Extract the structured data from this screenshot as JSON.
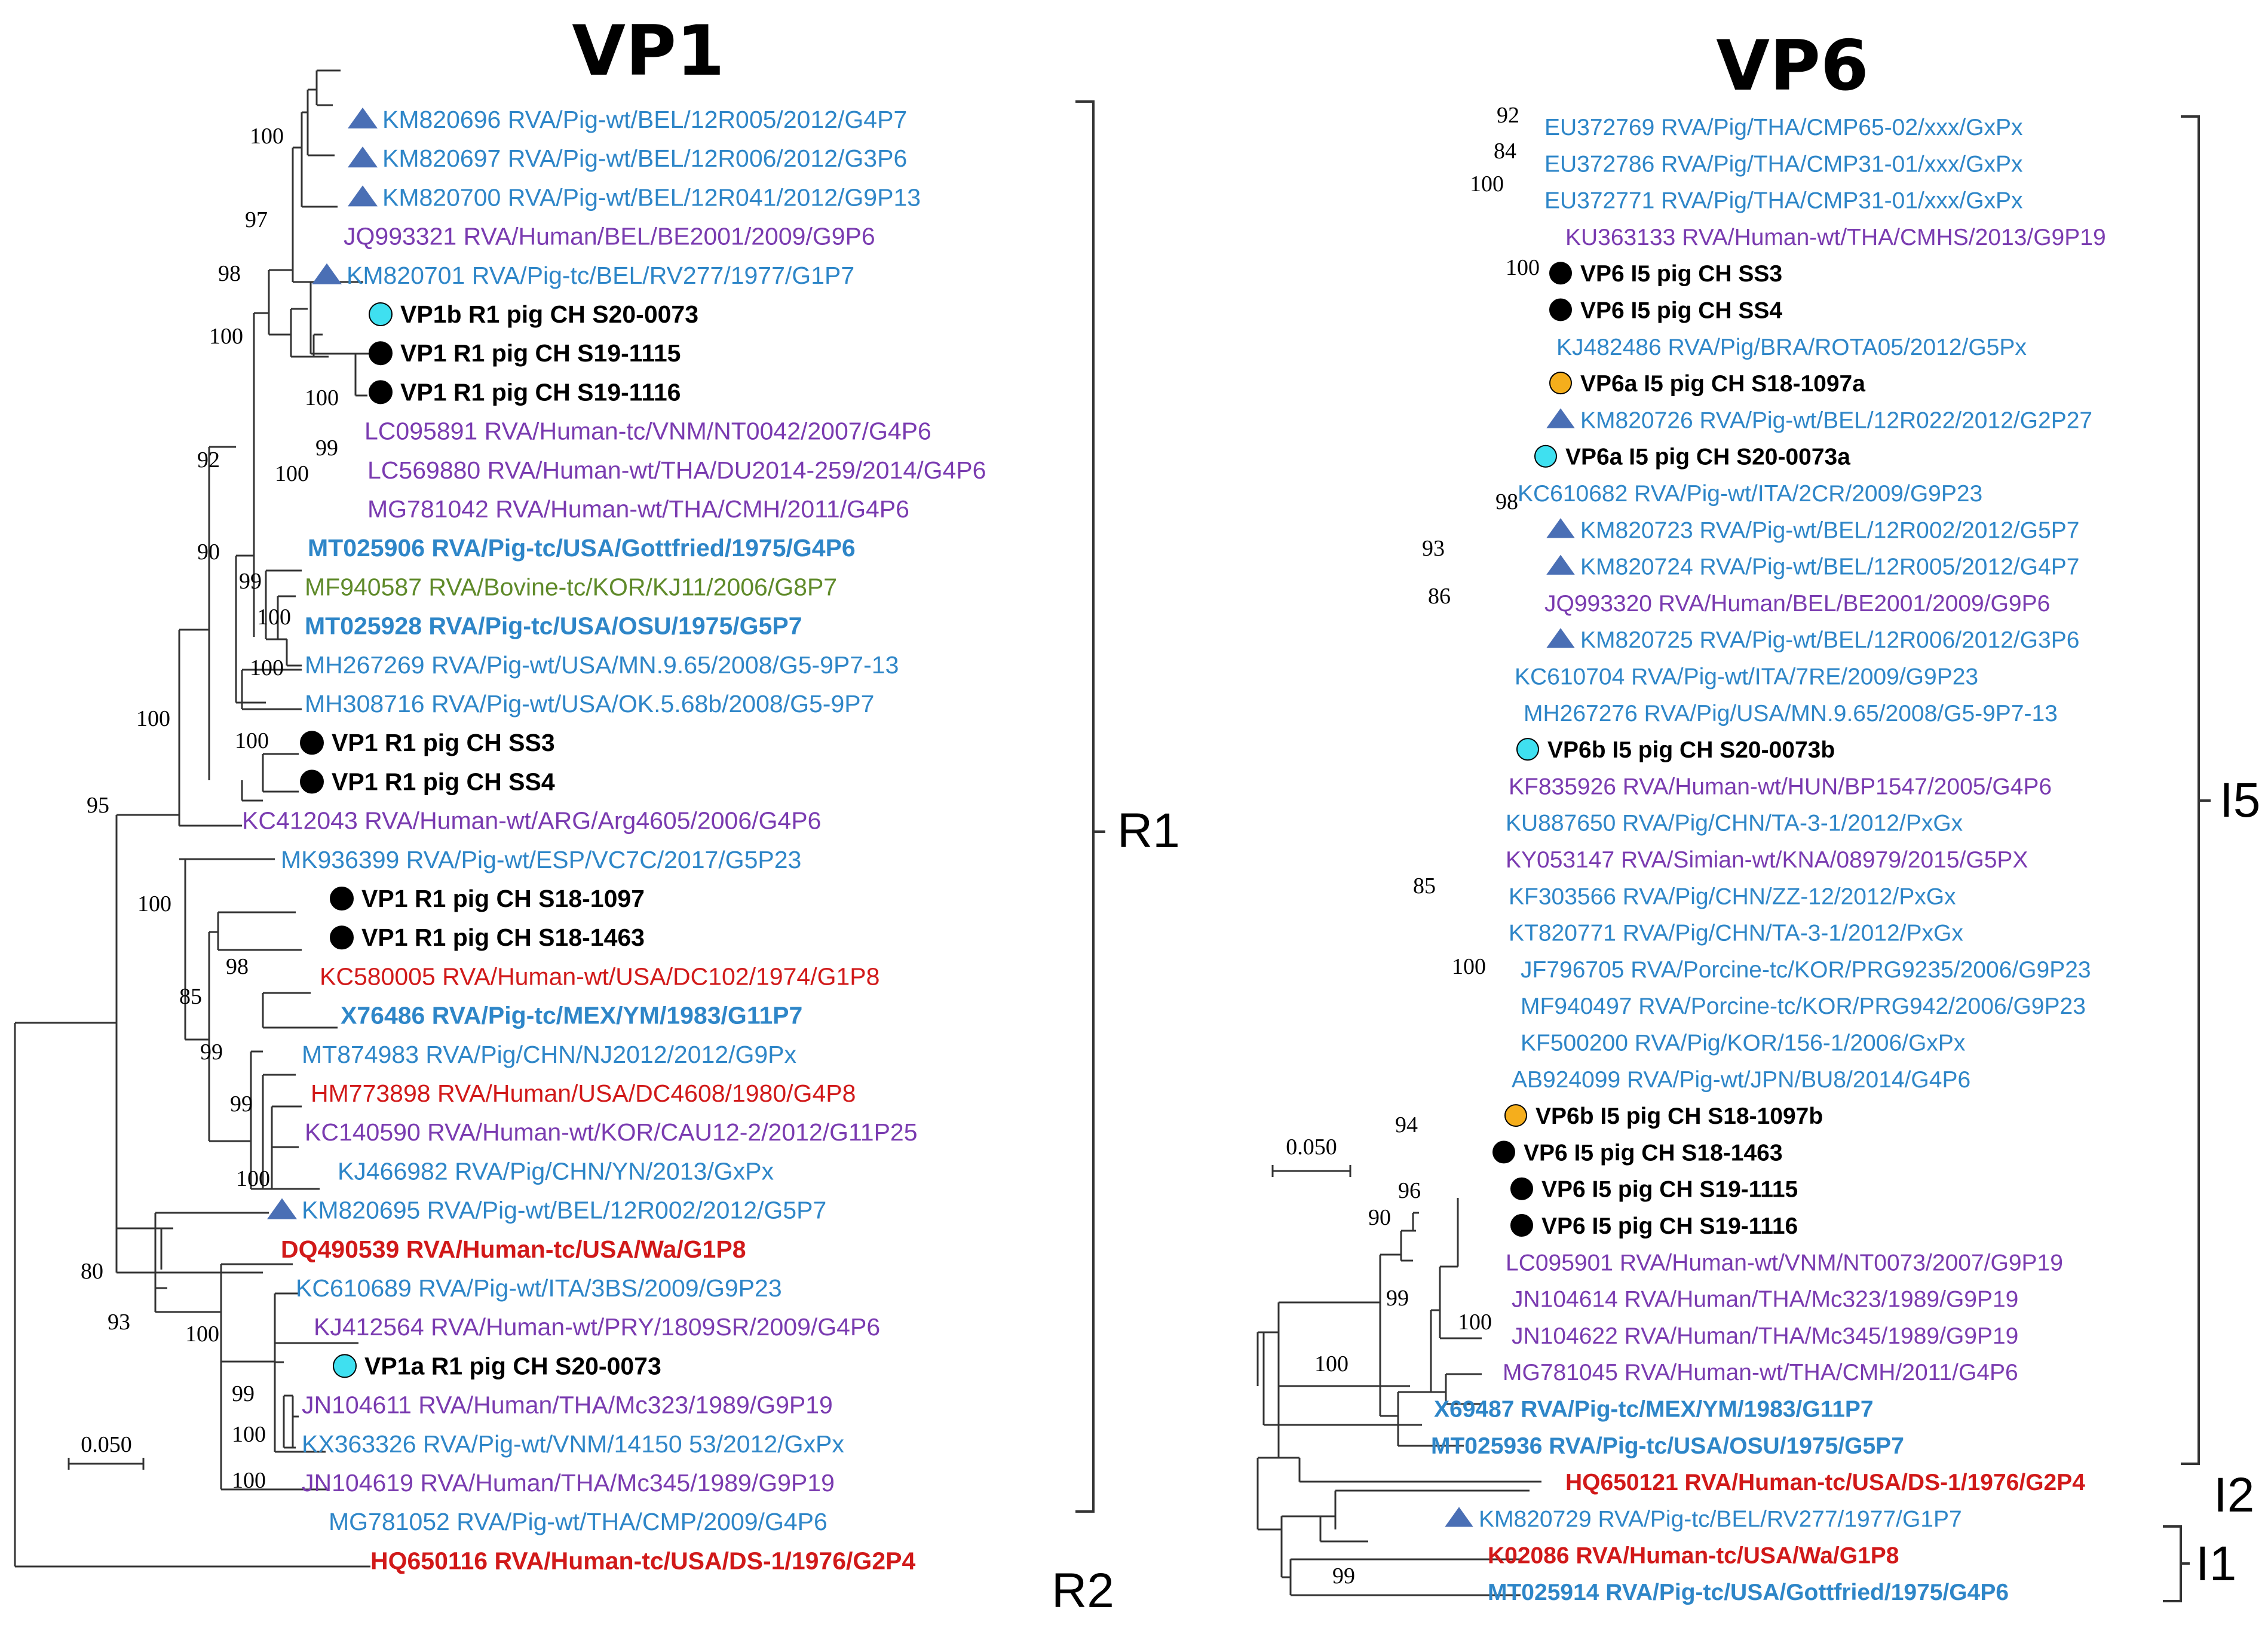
{
  "colors": {
    "blue": "#2e86c8",
    "purple": "#7a3bb0",
    "red": "#d11919",
    "green": "#5f8a2a",
    "black": "#000000",
    "cyan": "#3fe0f0",
    "orange": "#f5ae1c",
    "triangle": "#4a6fb5"
  },
  "vp1": {
    "title": "VP1",
    "scale_label": "0.050",
    "leaves": [
      {
        "text": "KM820696  RVA/Pig-wt/BEL/12R005/2012/G4P7",
        "color": "blue",
        "bold": false,
        "marker": "triangle"
      },
      {
        "text": "KM820697  RVA/Pig-wt/BEL/12R006/2012/G3P6",
        "color": "blue",
        "bold": false,
        "marker": "triangle"
      },
      {
        "text": "KM820700  RVA/Pig-wt/BEL/12R041/2012/G9P13",
        "color": "blue",
        "bold": false,
        "marker": "triangle"
      },
      {
        "text": "JQ993321  RVA/Human/BEL/BE2001/2009/G9P6",
        "color": "purple",
        "bold": false,
        "marker": ""
      },
      {
        "text": "KM820701  RVA/Pig-tc/BEL/RV277/1977/G1P7",
        "color": "blue",
        "bold": false,
        "marker": "triangle"
      },
      {
        "text": "VP1b R1 pig CH S20-0073",
        "color": "black",
        "bold": true,
        "marker": "cyan"
      },
      {
        "text": "VP1 R1 pig CH S19-1115",
        "color": "black",
        "bold": true,
        "marker": "black"
      },
      {
        "text": "VP1 R1 pig CH S19-1116",
        "color": "black",
        "bold": true,
        "marker": "black"
      },
      {
        "text": "LC095891  RVA/Human-tc/VNM/NT0042/2007/G4P6",
        "color": "purple",
        "bold": false,
        "marker": ""
      },
      {
        "text": "LC569880  RVA/Human-wt/THA/DU2014-259/2014/G4P6",
        "color": "purple",
        "bold": false,
        "marker": ""
      },
      {
        "text": "MG781042  RVA/Human-wt/THA/CMH/2011/G4P6",
        "color": "purple",
        "bold": false,
        "marker": ""
      },
      {
        "text": "MT025906  RVA/Pig-tc/USA/Gottfried/1975/G4P6",
        "color": "blue",
        "bold": true,
        "marker": ""
      },
      {
        "text": "MF940587  RVA/Bovine-tc/KOR/KJ11/2006/G8P7",
        "color": "green",
        "bold": false,
        "marker": ""
      },
      {
        "text": "MT025928  RVA/Pig-tc/USA/OSU/1975/G5P7",
        "color": "blue",
        "bold": true,
        "marker": ""
      },
      {
        "text": "MH267269  RVA/Pig-wt/USA/MN.9.65/2008/G5-9P7-13",
        "color": "blue",
        "bold": false,
        "marker": ""
      },
      {
        "text": "MH308716  RVA/Pig-wt/USA/OK.5.68b/2008/G5-9P7",
        "color": "blue",
        "bold": false,
        "marker": ""
      },
      {
        "text": "VP1 R1 pig CH SS3",
        "color": "black",
        "bold": true,
        "marker": "black"
      },
      {
        "text": "VP1 R1 pig CH SS4",
        "color": "black",
        "bold": true,
        "marker": "black"
      },
      {
        "text": "KC412043  RVA/Human-wt/ARG/Arg4605/2006/G4P6",
        "color": "purple",
        "bold": false,
        "marker": ""
      },
      {
        "text": "MK936399  RVA/Pig-wt/ESP/VC7C/2017/G5P23",
        "color": "blue",
        "bold": false,
        "marker": ""
      },
      {
        "text": "VP1 R1 pig CH S18-1097",
        "color": "black",
        "bold": true,
        "marker": "black"
      },
      {
        "text": "VP1 R1 pig CH S18-1463",
        "color": "black",
        "bold": true,
        "marker": "black"
      },
      {
        "text": "KC580005  RVA/Human-wt/USA/DC102/1974/G1P8",
        "color": "red",
        "bold": false,
        "marker": ""
      },
      {
        "text": "X76486  RVA/Pig-tc/MEX/YM/1983/G11P7",
        "color": "blue",
        "bold": true,
        "marker": ""
      },
      {
        "text": "MT874983  RVA/Pig/CHN/NJ2012/2012/G9Px",
        "color": "blue",
        "bold": false,
        "marker": ""
      },
      {
        "text": "HM773898  RVA/Human/USA/DC4608/1980/G4P8",
        "color": "red",
        "bold": false,
        "marker": ""
      },
      {
        "text": "KC140590  RVA/Human-wt/KOR/CAU12-2/2012/G11P25",
        "color": "purple",
        "bold": false,
        "marker": ""
      },
      {
        "text": "KJ466982  RVA/Pig/CHN/YN/2013/GxPx",
        "color": "blue",
        "bold": false,
        "marker": ""
      },
      {
        "text": "KM820695  RVA/Pig-wt/BEL/12R002/2012/G5P7",
        "color": "blue",
        "bold": false,
        "marker": "triangle"
      },
      {
        "text": "DQ490539  RVA/Human-tc/USA/Wa/G1P8",
        "color": "red",
        "bold": true,
        "marker": ""
      },
      {
        "text": "KC610689  RVA/Pig-wt/ITA/3BS/2009/G9P23",
        "color": "blue",
        "bold": false,
        "marker": ""
      },
      {
        "text": "KJ412564  RVA/Human-wt/PRY/1809SR/2009/G4P6",
        "color": "purple",
        "bold": false,
        "marker": ""
      },
      {
        "text": "VP1a R1 pig CH S20-0073",
        "color": "black",
        "bold": true,
        "marker": "cyan"
      },
      {
        "text": "JN104611  RVA/Human/THA/Mc323/1989/G9P19",
        "color": "purple",
        "bold": false,
        "marker": ""
      },
      {
        "text": "KX363326  RVA/Pig-wt/VNM/14150  53/2012/GxPx",
        "color": "blue",
        "bold": false,
        "marker": ""
      },
      {
        "text": "JN104619  RVA/Human/THA/Mc345/1989/G9P19",
        "color": "purple",
        "bold": false,
        "marker": ""
      },
      {
        "text": "MG781052  RVA/Pig-wt/THA/CMP/2009/G4P6",
        "color": "blue",
        "bold": false,
        "marker": ""
      },
      {
        "text": "HQ650116  RVA/Human-tc/USA/DS-1/1976/G2P4",
        "color": "red",
        "bold": true,
        "marker": ""
      }
    ],
    "bootstraps": [
      "100",
      "97",
      "98",
      "100",
      "100",
      "99",
      "100",
      "92",
      "90",
      "99",
      "100",
      "100",
      "100",
      "100",
      "95",
      "100",
      "98",
      "85",
      "99",
      "99",
      "100",
      "80",
      "93",
      "100",
      "99",
      "100",
      "100"
    ],
    "clades": [
      "R1",
      "R2"
    ]
  },
  "vp6": {
    "title": "VP6",
    "scale_label": "0.050",
    "leaves": [
      {
        "text": "EU372769  RVA/Pig/THA/CMP65-02/xxx/GxPx",
        "color": "blue",
        "bold": false,
        "marker": ""
      },
      {
        "text": "EU372786  RVA/Pig/THA/CMP31-01/xxx/GxPx",
        "color": "blue",
        "bold": false,
        "marker": ""
      },
      {
        "text": "EU372771  RVA/Pig/THA/CMP31-01/xxx/GxPx",
        "color": "blue",
        "bold": false,
        "marker": ""
      },
      {
        "text": "KU363133  RVA/Human-wt/THA/CMHS/2013/G9P19",
        "color": "purple",
        "bold": false,
        "marker": ""
      },
      {
        "text": "VP6 I5 pig CH SS3",
        "color": "black",
        "bold": true,
        "marker": "black"
      },
      {
        "text": "VP6 I5 pig CH SS4",
        "color": "black",
        "bold": true,
        "marker": "black"
      },
      {
        "text": "KJ482486  RVA/Pig/BRA/ROTA05/2012/G5Px",
        "color": "blue",
        "bold": false,
        "marker": ""
      },
      {
        "text": "VP6a I5 pig CH S18-1097a",
        "color": "black",
        "bold": true,
        "marker": "orange"
      },
      {
        "text": "KM820726  RVA/Pig-wt/BEL/12R022/2012/G2P27",
        "color": "blue",
        "bold": false,
        "marker": "triangle"
      },
      {
        "text": "VP6a I5 pig CH S20-0073a",
        "color": "black",
        "bold": true,
        "marker": "cyan"
      },
      {
        "text": "KC610682  RVA/Pig-wt/ITA/2CR/2009/G9P23",
        "color": "blue",
        "bold": false,
        "marker": ""
      },
      {
        "text": "KM820723  RVA/Pig-wt/BEL/12R002/2012/G5P7",
        "color": "blue",
        "bold": false,
        "marker": "triangle"
      },
      {
        "text": "KM820724  RVA/Pig-wt/BEL/12R005/2012/G4P7",
        "color": "blue",
        "bold": false,
        "marker": "triangle"
      },
      {
        "text": "JQ993320  RVA/Human/BEL/BE2001/2009/G9P6",
        "color": "purple",
        "bold": false,
        "marker": ""
      },
      {
        "text": "KM820725  RVA/Pig-wt/BEL/12R006/2012/G3P6",
        "color": "blue",
        "bold": false,
        "marker": "triangle"
      },
      {
        "text": "KC610704  RVA/Pig-wt/ITA/7RE/2009/G9P23",
        "color": "blue",
        "bold": false,
        "marker": ""
      },
      {
        "text": "MH267276  RVA/Pig/USA/MN.9.65/2008/G5-9P7-13",
        "color": "blue",
        "bold": false,
        "marker": ""
      },
      {
        "text": "VP6b I5 pig CH S20-0073b",
        "color": "black",
        "bold": true,
        "marker": "cyan"
      },
      {
        "text": "KF835926  RVA/Human-wt/HUN/BP1547/2005/G4P6",
        "color": "purple",
        "bold": false,
        "marker": ""
      },
      {
        "text": "KU887650  RVA/Pig/CHN/TA-3-1/2012/PxGx",
        "color": "blue",
        "bold": false,
        "marker": ""
      },
      {
        "text": "KY053147  RVA/Simian-wt/KNA/08979/2015/G5PX",
        "color": "purple",
        "bold": false,
        "marker": ""
      },
      {
        "text": "KF303566  RVA/Pig/CHN/ZZ-12/2012/PxGx",
        "color": "blue",
        "bold": false,
        "marker": ""
      },
      {
        "text": "KT820771  RVA/Pig/CHN/TA-3-1/2012/PxGx",
        "color": "blue",
        "bold": false,
        "marker": ""
      },
      {
        "text": "JF796705  RVA/Porcine-tc/KOR/PRG9235/2006/G9P23",
        "color": "blue",
        "bold": false,
        "marker": ""
      },
      {
        "text": "MF940497  RVA/Porcine-tc/KOR/PRG942/2006/G9P23",
        "color": "blue",
        "bold": false,
        "marker": ""
      },
      {
        "text": "KF500200  RVA/Pig/KOR/156-1/2006/GxPx",
        "color": "blue",
        "bold": false,
        "marker": ""
      },
      {
        "text": "AB924099  RVA/Pig-wt/JPN/BU8/2014/G4P6",
        "color": "blue",
        "bold": false,
        "marker": ""
      },
      {
        "text": "VP6b I5 pig CH S18-1097b",
        "color": "black",
        "bold": true,
        "marker": "orange"
      },
      {
        "text": "VP6 I5 pig CH S18-1463",
        "color": "black",
        "bold": true,
        "marker": "black"
      },
      {
        "text": "VP6 I5 pig CH S19-1115",
        "color": "black",
        "bold": true,
        "marker": "black"
      },
      {
        "text": "VP6 I5 pig CH S19-1116",
        "color": "black",
        "bold": true,
        "marker": "black"
      },
      {
        "text": "LC095901  RVA/Human-wt/VNM/NT0073/2007/G9P19",
        "color": "purple",
        "bold": false,
        "marker": ""
      },
      {
        "text": "JN104614  RVA/Human/THA/Mc323/1989/G9P19",
        "color": "purple",
        "bold": false,
        "marker": ""
      },
      {
        "text": "JN104622  RVA/Human/THA/Mc345/1989/G9P19",
        "color": "purple",
        "bold": false,
        "marker": ""
      },
      {
        "text": "MG781045  RVA/Human-wt/THA/CMH/2011/G4P6",
        "color": "purple",
        "bold": false,
        "marker": ""
      },
      {
        "text": "X69487  RVA/Pig-tc/MEX/YM/1983/G11P7",
        "color": "blue",
        "bold": true,
        "marker": ""
      },
      {
        "text": "MT025936  RVA/Pig-tc/USA/OSU/1975/G5P7",
        "color": "blue",
        "bold": true,
        "marker": ""
      },
      {
        "text": "HQ650121  RVA/Human-tc/USA/DS-1/1976/G2P4",
        "color": "red",
        "bold": true,
        "marker": ""
      },
      {
        "text": "KM820729  RVA/Pig-tc/BEL/RV277/1977/G1P7",
        "color": "blue",
        "bold": false,
        "marker": "triangle"
      },
      {
        "text": "K02086  RVA/Human-tc/USA/Wa/G1P8",
        "color": "red",
        "bold": true,
        "marker": ""
      },
      {
        "text": "MT025914  RVA/Pig-tc/USA/Gottfried/1975/G4P6",
        "color": "blue",
        "bold": true,
        "marker": ""
      }
    ],
    "bootstraps": [
      "92",
      "84",
      "100",
      "100",
      "98",
      "93",
      "86",
      "85",
      "100",
      "94",
      "96",
      "90",
      "99",
      "100",
      "100",
      "99"
    ],
    "clades": [
      "I5",
      "I2",
      "I1"
    ]
  }
}
